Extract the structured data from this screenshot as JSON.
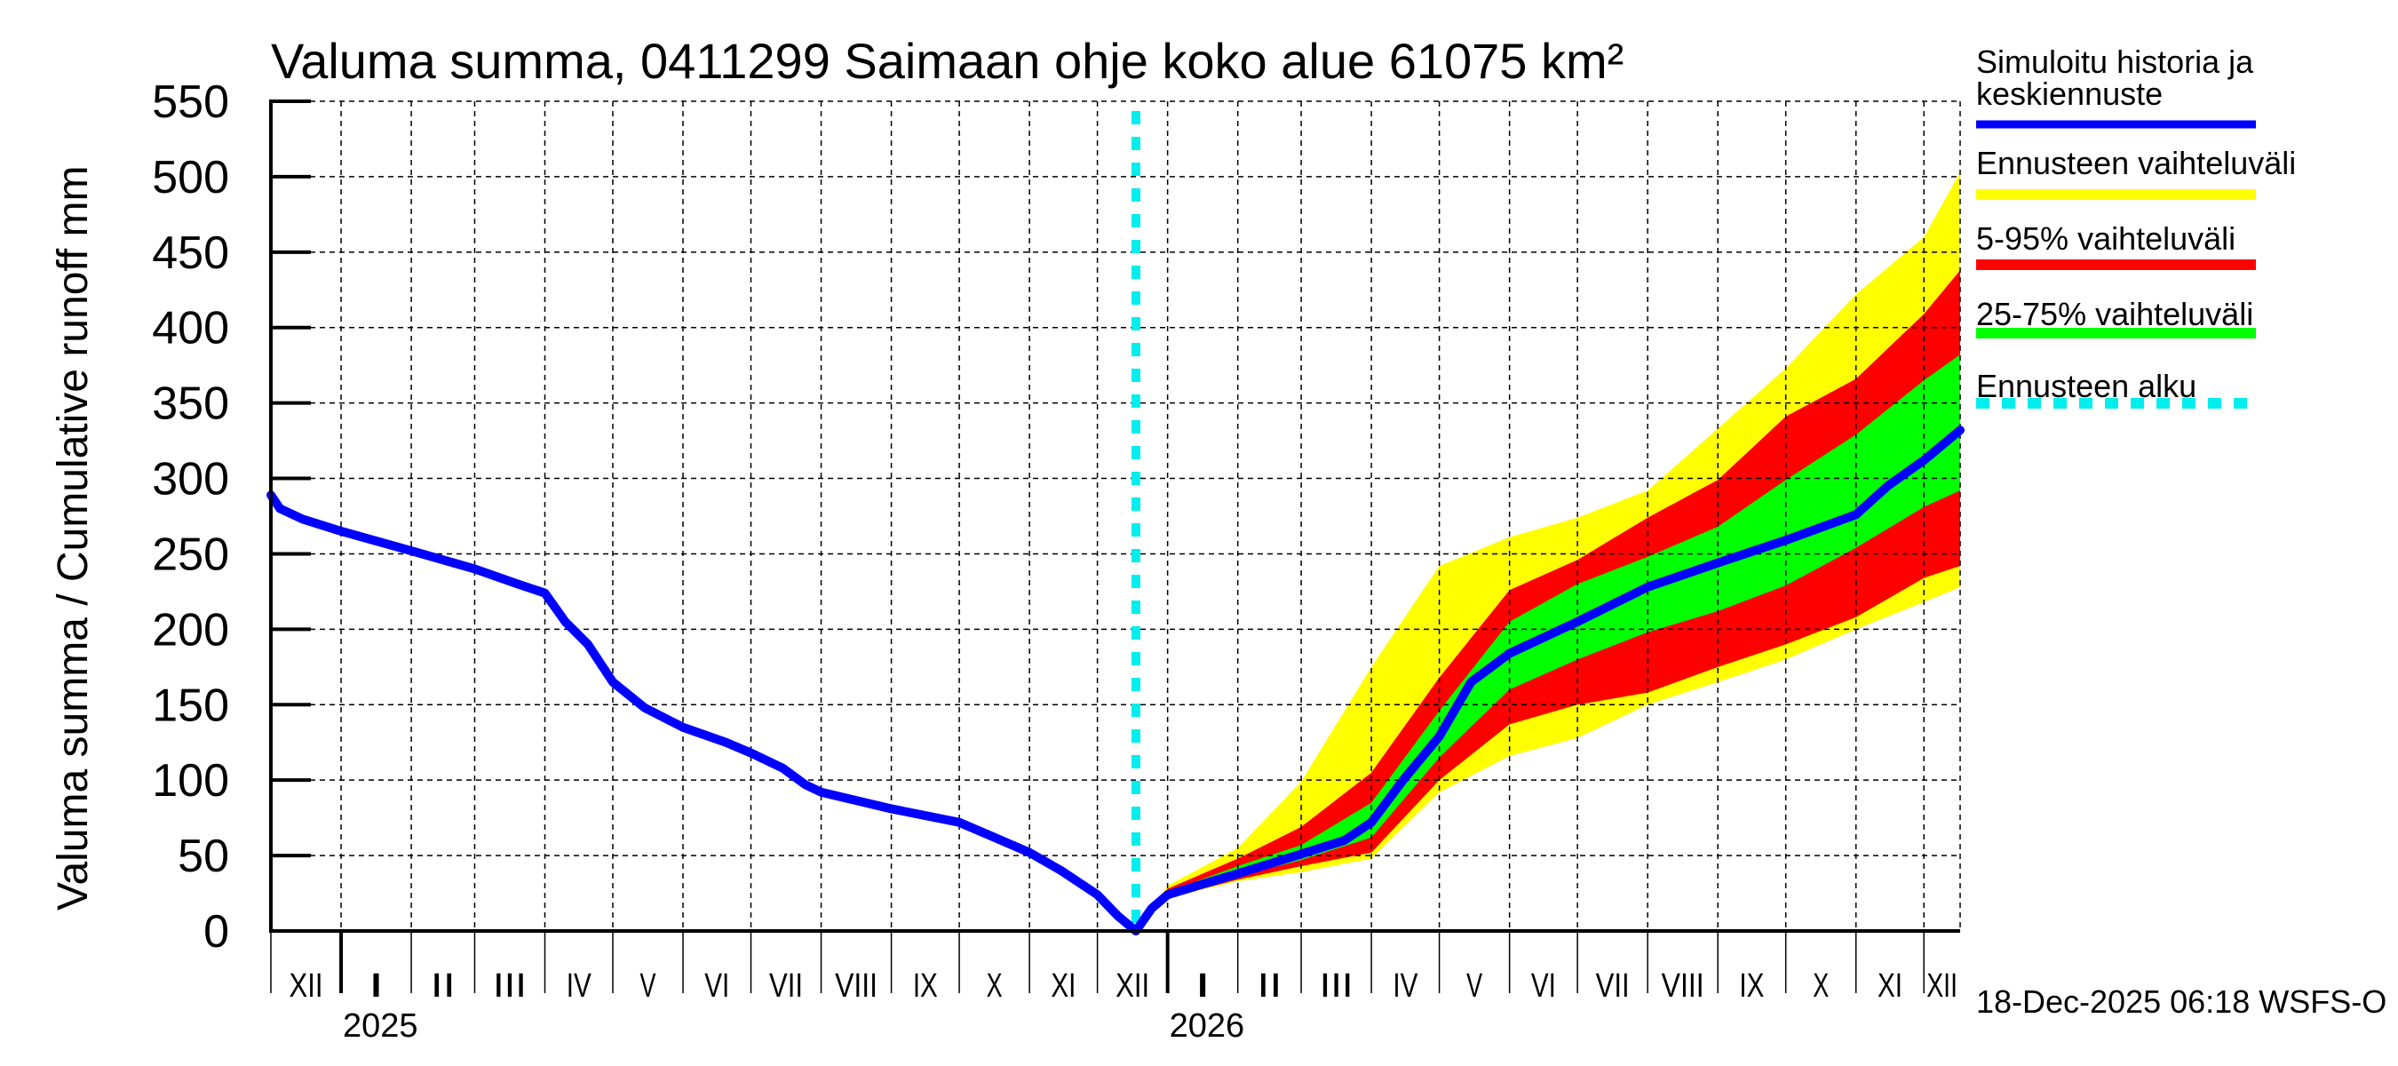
{
  "chart_data": {
    "type": "area",
    "title": "Valuma summa, 0411299 Saimaan ohje koko alue 61075 km²",
    "ylabel": "Valuma summa / Cumulative runoff    mm",
    "xlabel": "",
    "ylim": [
      0,
      550
    ],
    "yticks": [
      0,
      50,
      100,
      150,
      200,
      250,
      300,
      350,
      400,
      450,
      500,
      550
    ],
    "xlim": [
      "2024-12-01",
      "2026-12-17"
    ],
    "grid": true,
    "forecast_start": "2025-12-18",
    "month_labels": [
      {
        "label": "XII",
        "start": "2024-12-01"
      },
      {
        "label": "I",
        "start": "2025-01-01"
      },
      {
        "label": "II",
        "start": "2025-02-01"
      },
      {
        "label": "III",
        "start": "2025-03-01"
      },
      {
        "label": "IV",
        "start": "2025-04-01"
      },
      {
        "label": "V",
        "start": "2025-05-01"
      },
      {
        "label": "VI",
        "start": "2025-06-01"
      },
      {
        "label": "VII",
        "start": "2025-07-01"
      },
      {
        "label": "VIII",
        "start": "2025-08-01"
      },
      {
        "label": "IX",
        "start": "2025-09-01"
      },
      {
        "label": "X",
        "start": "2025-10-01"
      },
      {
        "label": "XI",
        "start": "2025-11-01"
      },
      {
        "label": "XII",
        "start": "2025-12-01"
      },
      {
        "label": "I",
        "start": "2026-01-01"
      },
      {
        "label": "II",
        "start": "2026-02-01"
      },
      {
        "label": "III",
        "start": "2026-03-01"
      },
      {
        "label": "IV",
        "start": "2026-04-01"
      },
      {
        "label": "V",
        "start": "2026-05-01"
      },
      {
        "label": "VI",
        "start": "2026-06-01"
      },
      {
        "label": "VII",
        "start": "2026-07-01"
      },
      {
        "label": "VIII",
        "start": "2026-08-01"
      },
      {
        "label": "IX",
        "start": "2026-09-01"
      },
      {
        "label": "X",
        "start": "2026-10-01"
      },
      {
        "label": "XI",
        "start": "2026-11-01"
      },
      {
        "label": "XII",
        "start": "2026-12-01"
      }
    ],
    "year_labels": [
      {
        "label": "2025",
        "start": "2025-01-01"
      },
      {
        "label": "2026",
        "start": "2026-01-01"
      }
    ],
    "series": [
      {
        "name": "Simuloitu historia ja keskiennuste",
        "color": "#0000ff",
        "kind": "line",
        "points": [
          [
            "2024-12-01",
            289
          ],
          [
            "2024-12-05",
            280
          ],
          [
            "2024-12-15",
            273
          ],
          [
            "2025-01-01",
            265
          ],
          [
            "2025-02-01",
            252
          ],
          [
            "2025-03-01",
            240
          ],
          [
            "2025-03-20",
            230
          ],
          [
            "2025-04-01",
            224
          ],
          [
            "2025-04-10",
            205
          ],
          [
            "2025-04-20",
            190
          ],
          [
            "2025-05-01",
            165
          ],
          [
            "2025-05-15",
            148
          ],
          [
            "2025-06-01",
            135
          ],
          [
            "2025-06-20",
            125
          ],
          [
            "2025-07-01",
            118
          ],
          [
            "2025-07-15",
            108
          ],
          [
            "2025-07-25",
            97
          ],
          [
            "2025-08-01",
            92
          ],
          [
            "2025-09-01",
            81
          ],
          [
            "2025-10-01",
            72
          ],
          [
            "2025-10-15",
            63
          ],
          [
            "2025-11-01",
            52
          ],
          [
            "2025-11-15",
            40
          ],
          [
            "2025-12-01",
            24
          ],
          [
            "2025-12-10",
            10
          ],
          [
            "2025-12-18",
            0
          ],
          [
            "2025-12-25",
            15
          ],
          [
            "2026-01-01",
            24
          ],
          [
            "2026-02-01",
            38
          ],
          [
            "2026-03-01",
            51
          ],
          [
            "2026-03-20",
            60
          ],
          [
            "2026-04-01",
            72
          ],
          [
            "2026-04-15",
            100
          ],
          [
            "2026-05-01",
            129
          ],
          [
            "2026-05-15",
            165
          ],
          [
            "2026-06-01",
            184
          ],
          [
            "2026-07-01",
            205
          ],
          [
            "2026-08-01",
            228
          ],
          [
            "2026-09-01",
            244
          ],
          [
            "2026-10-01",
            259
          ],
          [
            "2026-11-01",
            276
          ],
          [
            "2026-11-15",
            295
          ],
          [
            "2026-12-01",
            312
          ],
          [
            "2026-12-17",
            332
          ]
        ]
      },
      {
        "name": "Ennusteen vaihteluväli",
        "color": "#ffff00",
        "kind": "band",
        "dates": [
          "2025-12-18",
          "2026-01-01",
          "2026-02-01",
          "2026-03-01",
          "2026-04-01",
          "2026-05-01",
          "2026-06-01",
          "2026-07-01",
          "2026-08-01",
          "2026-09-01",
          "2026-10-01",
          "2026-11-01",
          "2026-12-01",
          "2026-12-17"
        ],
        "upper": [
          0,
          30,
          55,
          99,
          175,
          242,
          261,
          274,
          292,
          333,
          373,
          422,
          460,
          503
        ],
        "lower": [
          0,
          22,
          33,
          39,
          48,
          92,
          116,
          128,
          150,
          165,
          180,
          200,
          218,
          228
        ]
      },
      {
        "name": "5-95% vaihteluväli",
        "color": "#ff0000",
        "kind": "band",
        "dates": [
          "2025-12-18",
          "2026-01-01",
          "2026-02-01",
          "2026-03-01",
          "2026-04-01",
          "2026-05-01",
          "2026-06-01",
          "2026-07-01",
          "2026-08-01",
          "2026-09-01",
          "2026-10-01",
          "2026-11-01",
          "2026-12-01",
          "2026-12-17"
        ],
        "upper": [
          0,
          28,
          48,
          69,
          105,
          168,
          226,
          246,
          274,
          299,
          341,
          366,
          409,
          438
        ],
        "lower": [
          0,
          22,
          34,
          43,
          52,
          100,
          137,
          150,
          158,
          175,
          190,
          208,
          234,
          242
        ]
      },
      {
        "name": "25-75% vaihteluväli",
        "color": "#00ff00",
        "kind": "band",
        "dates": [
          "2025-12-18",
          "2026-01-01",
          "2026-02-01",
          "2026-03-01",
          "2026-04-01",
          "2026-05-01",
          "2026-06-01",
          "2026-07-01",
          "2026-08-01",
          "2026-09-01",
          "2026-10-01",
          "2026-11-01",
          "2026-12-01",
          "2026-12-17"
        ],
        "upper": [
          0,
          26,
          43,
          57,
          85,
          146,
          205,
          230,
          248,
          268,
          299,
          329,
          365,
          382
        ],
        "lower": [
          0,
          23,
          36,
          47,
          62,
          115,
          160,
          180,
          198,
          212,
          229,
          254,
          281,
          292
        ]
      }
    ],
    "legend": {
      "placement": "right",
      "entries": [
        {
          "label_lines": [
            "Simuloitu historia ja",
            "keskiennuste"
          ],
          "color": "#0000ff",
          "style": "line"
        },
        {
          "label_lines": [
            "Ennusteen vaihteluväli"
          ],
          "color": "#ffff00",
          "style": "band"
        },
        {
          "label_lines": [
            "5-95% vaihteluväli"
          ],
          "color": "#ff0000",
          "style": "band"
        },
        {
          "label_lines": [
            "25-75% vaihteluväli"
          ],
          "color": "#00ff00",
          "style": "band"
        },
        {
          "label_lines": [
            "Ennusteen alku"
          ],
          "color": "#00eeee",
          "style": "dashed"
        }
      ]
    },
    "timestamp": "18-Dec-2025 06:18 WSFS-O"
  }
}
